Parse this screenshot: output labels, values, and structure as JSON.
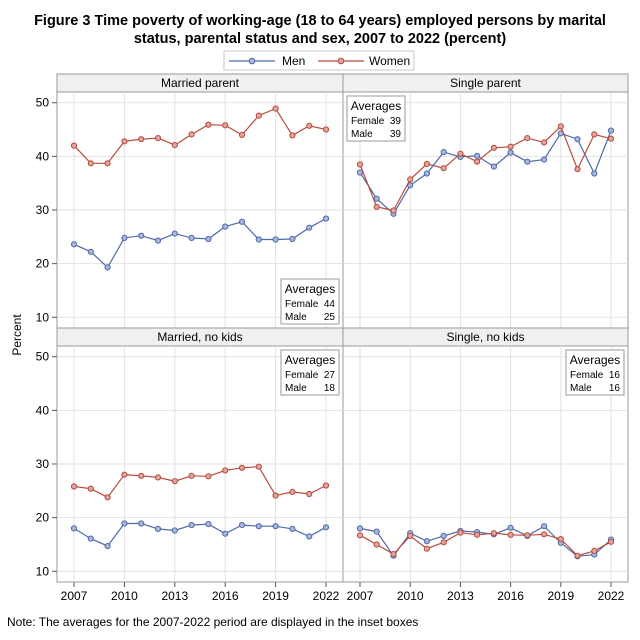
{
  "chart_data": {
    "type": "line",
    "title_line1": "Figure 3 Time poverty of working-age (18 to 64 years) employed persons by marital",
    "title_line2": "status, parental status and sex, 2007 to 2022 (percent)",
    "ylabel": "Percent",
    "note": "Note: The averages for the 2007-2022 period are displayed in the inset boxes",
    "legend": {
      "men": "Men",
      "women": "Women"
    },
    "colors": {
      "men": "#4f6aa8",
      "women": "#b84a3c",
      "marker_men": "#a9b6de",
      "marker_women": "#dfa69f"
    },
    "x": [
      2007,
      2008,
      2009,
      2010,
      2011,
      2012,
      2013,
      2014,
      2015,
      2016,
      2017,
      2018,
      2019,
      2020,
      2021,
      2022
    ],
    "x_ticks": [
      "2007",
      "2010",
      "2013",
      "2016",
      "2019",
      "2022"
    ],
    "ylim": [
      8,
      52
    ],
    "y_ticks": [
      "10",
      "20",
      "30",
      "40",
      "50"
    ],
    "grid": true,
    "averages_header": "Averages",
    "female_label": "Female",
    "male_label": "Male",
    "panels": [
      {
        "title": "Married parent",
        "men": [
          23.6,
          22.2,
          19.3,
          24.8,
          25.2,
          24.3,
          25.6,
          24.8,
          24.6,
          26.9,
          27.8,
          24.5,
          24.5,
          24.6,
          26.7,
          28.4
        ],
        "women": [
          42.0,
          38.7,
          38.7,
          42.8,
          43.2,
          43.4,
          42.1,
          44.1,
          45.9,
          45.8,
          44.0,
          47.6,
          48.9,
          43.9,
          45.7,
          45.0
        ],
        "avg_female": "44",
        "avg_male": "25",
        "avg_pos": "bottom-right"
      },
      {
        "title": "Single parent",
        "men": [
          37.0,
          32.1,
          29.3,
          34.6,
          36.8,
          40.8,
          39.9,
          40.1,
          38.1,
          40.7,
          39.0,
          39.4,
          44.3,
          43.2,
          36.8,
          44.8
        ],
        "women": [
          38.5,
          30.6,
          29.9,
          35.7,
          38.6,
          37.8,
          40.5,
          39.0,
          41.6,
          41.8,
          43.4,
          42.6,
          45.6,
          37.6,
          44.1,
          43.3
        ],
        "avg_female": "39",
        "avg_male": "39",
        "avg_pos": "top-left"
      },
      {
        "title": "Married, no kids",
        "men": [
          18.0,
          16.1,
          14.7,
          18.9,
          18.9,
          17.9,
          17.6,
          18.6,
          18.8,
          17.0,
          18.6,
          18.4,
          18.4,
          17.9,
          16.5,
          18.2
        ],
        "women": [
          25.8,
          25.4,
          23.8,
          28.0,
          27.8,
          27.5,
          26.8,
          27.8,
          27.7,
          28.8,
          29.3,
          29.5,
          24.1,
          24.8,
          24.4,
          26.0
        ],
        "avg_female": "27",
        "avg_male": "18",
        "avg_pos": "top-right"
      },
      {
        "title": "Single, no kids",
        "men": [
          18.0,
          17.4,
          12.9,
          17.1,
          15.6,
          16.6,
          17.5,
          17.3,
          16.9,
          18.1,
          16.6,
          18.4,
          15.3,
          12.8,
          13.1,
          15.9
        ],
        "women": [
          16.7,
          15.0,
          13.2,
          16.6,
          14.2,
          15.4,
          17.2,
          16.8,
          17.1,
          16.8,
          16.7,
          16.9,
          16.0,
          12.9,
          13.8,
          15.5
        ],
        "avg_female": "16",
        "avg_male": "16",
        "avg_pos": "top-right"
      }
    ]
  }
}
